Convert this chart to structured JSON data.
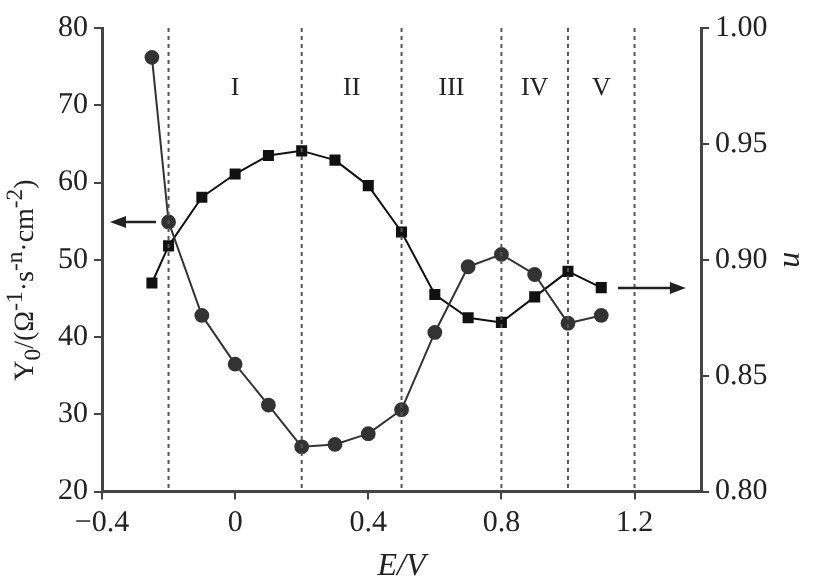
{
  "chart_data": {
    "type": "line",
    "xlabel": "E/V",
    "ylabel": "Y$_{0}$/(Ω$^{-1}$·s$^{-n}$·cm$^{-2}$)",
    "y2label": "n",
    "x": [
      -0.25,
      -0.2,
      -0.1,
      0,
      0.1,
      0.2,
      0.3,
      0.4,
      0.5,
      0.6,
      0.7,
      0.8,
      0.9,
      1.0,
      1.1
    ],
    "series": [
      {
        "color": "#333333",
        "marker": "circle",
        "values": [
          76.2,
          54.9,
          42.8,
          36.5,
          31.2,
          25.8,
          26.1,
          27.5,
          30.6,
          40.6,
          49.1,
          50.7,
          48.1,
          41.8,
          42.8
        ]
      },
      {
        "color": "#111111",
        "marker": "square",
        "axis": "y2",
        "values": [
          0.89,
          0.906,
          0.927,
          0.937,
          0.945,
          0.947,
          0.943,
          0.932,
          0.912,
          0.885,
          0.875,
          0.873,
          0.884,
          0.895,
          0.888
        ]
      }
    ],
    "xlim": [
      -0.4,
      1.4
    ],
    "xticks": [
      {
        "value": -0.4,
        "label": "−0.4"
      },
      0,
      0.4,
      0.8,
      1.2
    ],
    "ylim": [
      20,
      80
    ],
    "yticks": [
      20,
      30,
      40,
      50,
      60,
      70,
      80
    ],
    "y2lim": [
      0.8,
      1.0
    ],
    "y2ticks": [
      {
        "value": 0.8,
        "label": "0.80"
      },
      {
        "value": 0.85,
        "label": "0.85"
      },
      {
        "value": 0.9,
        "label": "0.90"
      },
      {
        "value": 0.95,
        "label": "0.95"
      },
      {
        "value": 1.0,
        "label": "1.00"
      }
    ],
    "ref_lines": [
      {
        "axis": "x",
        "value": -0.2,
        "line_style": "dotted"
      },
      {
        "axis": "x",
        "value": 0.2,
        "line_style": "dotted"
      },
      {
        "axis": "x",
        "value": 0.5,
        "line_style": "dotted"
      },
      {
        "axis": "x",
        "value": 0.8,
        "line_style": "dotted"
      },
      {
        "axis": "x",
        "value": 1.0,
        "line_style": "dotted"
      },
      {
        "axis": "x",
        "value": 1.2,
        "line_style": "dotted"
      }
    ],
    "annotations": [
      "I",
      "II",
      "III",
      "IV",
      "V"
    ],
    "grid": false,
    "legend": false,
    "line_style": "solid"
  }
}
